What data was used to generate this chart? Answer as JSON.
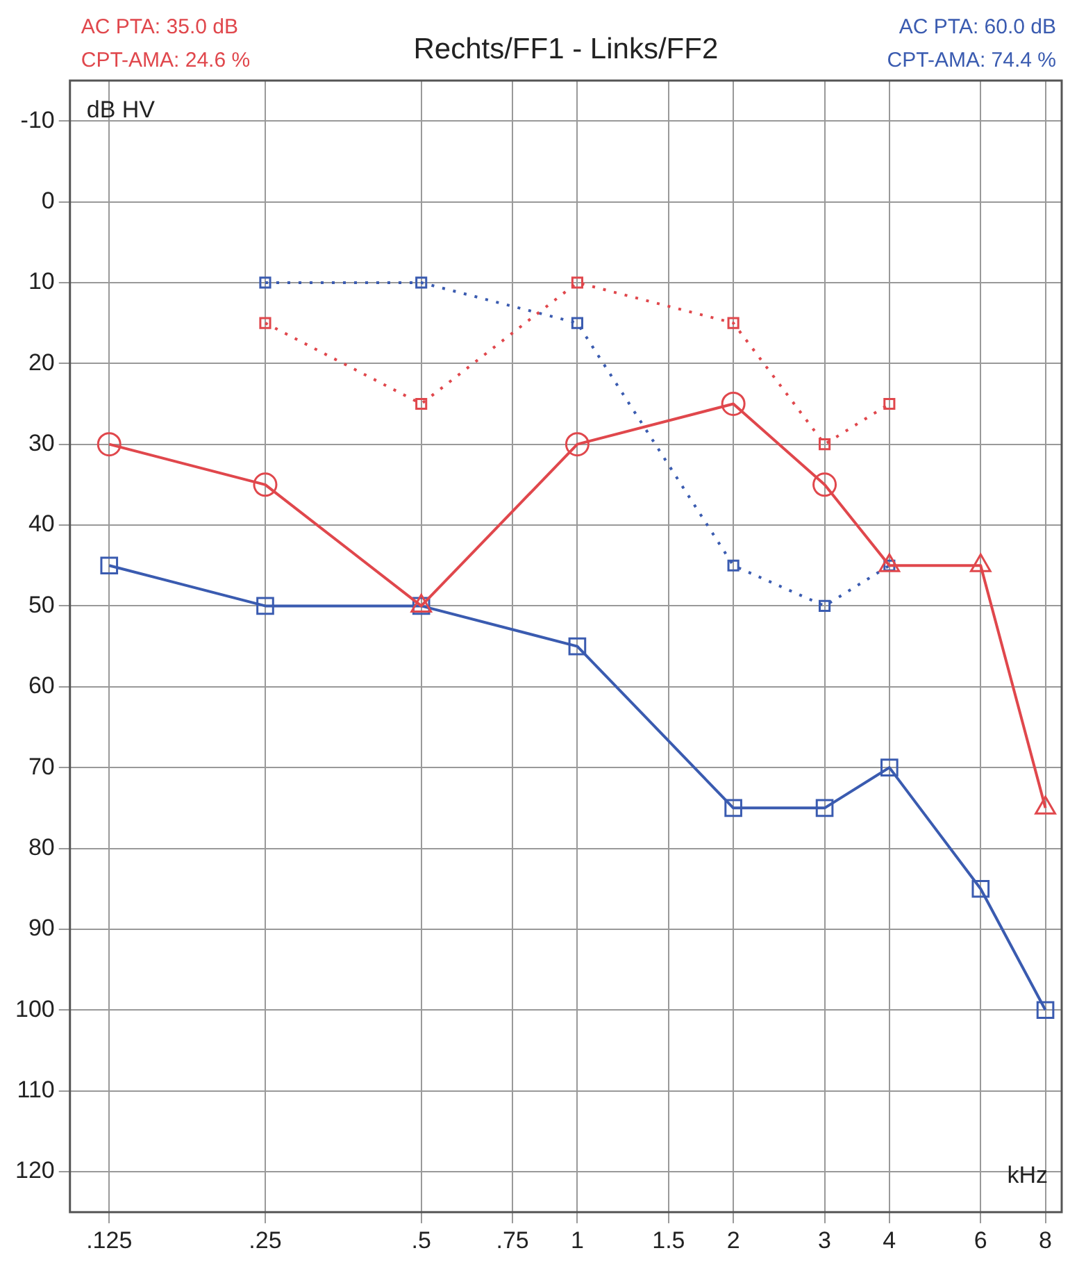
{
  "chart_data": {
    "type": "line",
    "title": "Rechts/FF1 - Links/FF2",
    "xlabel": "kHz",
    "ylabel": "dB HV",
    "annotations": [
      "AC PTA: 35.0 dB",
      "CPT-AMA: 24.6 %",
      "AC PTA: 60.0 dB",
      "CPT-AMA: 74.4 %"
    ],
    "log": "x",
    "xlim": [
      0.105,
      8.6
    ],
    "xticks": [
      {
        "value": 0.125,
        "label": ".125"
      },
      {
        "value": 0.25,
        "label": ".25"
      },
      {
        "value": 0.5,
        "label": ".5"
      },
      {
        "value": 0.75,
        "label": ".75"
      },
      1,
      1.5,
      2,
      3,
      4,
      6,
      8
    ],
    "ylim": [
      125,
      -15
    ],
    "yticks": [
      -10,
      0,
      10,
      20,
      30,
      40,
      50,
      60,
      70,
      80,
      90,
      100,
      110,
      120
    ],
    "grid": true,
    "legend": false,
    "series": [
      {
        "color": "#e0474c",
        "marker": "none",
        "line_style": "solid",
        "x": [
          0.125,
          0.25,
          0.5,
          1,
          2,
          3,
          4,
          6,
          8
        ],
        "values": [
          30,
          35,
          50,
          30,
          25,
          35,
          45,
          45,
          75
        ]
      },
      {
        "type": "scatter",
        "color": "#e0474c",
        "marker": "circle",
        "x": [
          0.125,
          0.25,
          1,
          2,
          3
        ],
        "values": [
          30,
          35,
          30,
          25,
          35
        ]
      },
      {
        "type": "scatter",
        "color": "#e0474c",
        "marker": "triangle",
        "x": [
          0.5,
          4,
          6,
          8
        ],
        "values": [
          50,
          45,
          45,
          75
        ]
      },
      {
        "color": "#3a5bb0",
        "marker": "square",
        "line_style": "solid",
        "x": [
          0.125,
          0.25,
          0.5,
          1,
          2,
          3,
          4,
          6,
          8
        ],
        "values": [
          45,
          50,
          50,
          55,
          75,
          75,
          70,
          85,
          100
        ]
      },
      {
        "color": "#e0474c",
        "marker": "square",
        "line_style": "dotted",
        "x": [
          0.25,
          0.5,
          1,
          2,
          3,
          4
        ],
        "values": [
          15,
          25,
          10,
          15,
          30,
          25
        ]
      },
      {
        "color": "#3a5bb0",
        "marker": "square",
        "line_style": "dotted",
        "x": [
          0.25,
          0.5,
          1,
          2,
          3,
          4
        ],
        "values": [
          10,
          10,
          15,
          45,
          50,
          45
        ]
      }
    ]
  }
}
